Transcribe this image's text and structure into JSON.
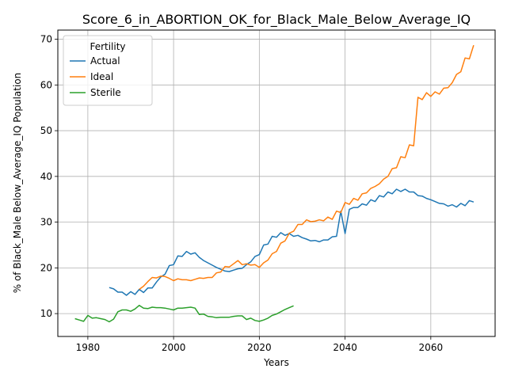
{
  "chart_data": {
    "type": "line",
    "title": "Score_6_in_ABORTION_OK_for_Black_Male_Below_Average_IQ",
    "xlabel": "Years",
    "ylabel": "% of Black_Male Below_Average_IQ Population",
    "xlim": [
      1973,
      2075
    ],
    "ylim": [
      5,
      72
    ],
    "xticks": [
      1980,
      2000,
      2020,
      2040,
      2060
    ],
    "yticks": [
      10,
      20,
      30,
      40,
      50,
      60,
      70
    ],
    "grid": true,
    "legend": {
      "title": "Fertility",
      "placement": "top-left"
    },
    "series": [
      {
        "name": "Actual",
        "color": "#1f77b4",
        "x": [
          1985,
          1986,
          1987,
          1988,
          1989,
          1990,
          1991,
          1992,
          1993,
          1994,
          1995,
          1996,
          1997,
          1998,
          1999,
          2000,
          2001,
          2002,
          2003,
          2004,
          2005,
          2006,
          2007,
          2008,
          2009,
          2010,
          2011,
          2012,
          2013,
          2014,
          2015,
          2016,
          2017,
          2018,
          2019,
          2020,
          2021,
          2022,
          2023,
          2024,
          2025,
          2026,
          2027,
          2028,
          2029,
          2030,
          2031,
          2032,
          2033,
          2034,
          2035,
          2036,
          2037,
          2038,
          2039,
          2040,
          2041,
          2042,
          2043,
          2044,
          2045,
          2046,
          2047,
          2048,
          2049,
          2050,
          2051,
          2052,
          2053,
          2054,
          2055,
          2056,
          2057,
          2058,
          2059,
          2060,
          2061,
          2062,
          2063,
          2064,
          2065,
          2066,
          2067,
          2068,
          2069,
          2070
        ],
        "y": [
          15.7,
          15.4,
          14.7,
          14.7,
          14.0,
          14.8,
          14.2,
          15.3,
          14.6,
          15.6,
          15.6,
          16.9,
          18.0,
          18.6,
          20.5,
          20.7,
          22.6,
          22.5,
          23.6,
          23.0,
          23.3,
          22.3,
          21.6,
          21.1,
          20.6,
          20.1,
          19.7,
          19.3,
          19.2,
          19.5,
          19.8,
          19.9,
          20.7,
          21.3,
          22.5,
          22.9,
          25.0,
          25.2,
          26.9,
          26.7,
          27.7,
          27.1,
          27.5,
          26.9,
          27.1,
          26.6,
          26.3,
          25.9,
          26.0,
          25.7,
          26.1,
          26.1,
          26.8,
          26.9,
          32.4,
          27.5,
          32.8,
          33.2,
          33.2,
          34.0,
          33.7,
          34.9,
          34.5,
          35.8,
          35.5,
          36.6,
          36.2,
          37.2,
          36.7,
          37.2,
          36.6,
          36.6,
          35.8,
          35.7,
          35.2,
          34.9,
          34.5,
          34.1,
          34.0,
          33.5,
          33.8,
          33.3,
          34.1,
          33.6,
          34.7,
          34.4
        ]
      },
      {
        "name": "Ideal",
        "color": "#ff7f0e",
        "x": [
          1992,
          1993,
          1994,
          1995,
          1996,
          1997,
          1998,
          1999,
          2000,
          2001,
          2002,
          2003,
          2004,
          2005,
          2006,
          2007,
          2008,
          2009,
          2010,
          2011,
          2012,
          2013,
          2014,
          2015,
          2016,
          2017,
          2018,
          2019,
          2020,
          2021,
          2022,
          2023,
          2024,
          2025,
          2026,
          2027,
          2028,
          2029,
          2030,
          2031,
          2032,
          2033,
          2034,
          2035,
          2036,
          2037,
          2038,
          2039,
          2040,
          2041,
          2042,
          2043,
          2044,
          2045,
          2046,
          2047,
          2048,
          2049,
          2050,
          2051,
          2052,
          2053,
          2054,
          2055,
          2056,
          2057,
          2058,
          2059,
          2060,
          2061,
          2062,
          2063,
          2064,
          2065,
          2066,
          2067,
          2068,
          2069,
          2070
        ],
        "y": [
          15.3,
          16.0,
          17.0,
          17.9,
          17.8,
          18.2,
          18.1,
          17.7,
          17.2,
          17.6,
          17.4,
          17.4,
          17.2,
          17.5,
          17.8,
          17.7,
          17.9,
          17.9,
          18.9,
          19.1,
          20.3,
          20.2,
          20.9,
          21.6,
          20.7,
          20.9,
          20.6,
          20.7,
          20.1,
          21.1,
          21.7,
          23.1,
          23.6,
          25.4,
          25.9,
          27.6,
          28.0,
          29.5,
          29.5,
          30.5,
          30.1,
          30.2,
          30.5,
          30.3,
          31.1,
          30.6,
          32.4,
          32.1,
          34.3,
          33.9,
          35.2,
          34.8,
          36.2,
          36.4,
          37.4,
          37.8,
          38.4,
          39.4,
          40.0,
          41.7,
          41.9,
          44.3,
          44.1,
          46.9,
          46.7,
          57.3,
          56.8,
          58.3,
          57.5,
          58.5,
          58.0,
          59.3,
          59.4,
          60.5,
          62.3,
          62.9,
          65.9,
          65.7,
          68.7
        ]
      },
      {
        "name": "Sterile",
        "color": "#2ca02c",
        "x": [
          1977,
          1978,
          1979,
          1980,
          1981,
          1982,
          1983,
          1984,
          1985,
          1986,
          1987,
          1988,
          1989,
          1990,
          1991,
          1992,
          1993,
          1994,
          1995,
          1996,
          1997,
          1998,
          1999,
          2000,
          2001,
          2002,
          2003,
          2004,
          2005,
          2006,
          2007,
          2008,
          2009,
          2010,
          2011,
          2012,
          2013,
          2014,
          2015,
          2016,
          2017,
          2018,
          2019,
          2020,
          2021,
          2022,
          2023,
          2024,
          2025,
          2026,
          2027,
          2028
        ],
        "y": [
          8.9,
          8.6,
          8.3,
          9.6,
          9.0,
          9.1,
          8.9,
          8.7,
          8.2,
          8.8,
          10.4,
          10.8,
          10.8,
          10.5,
          11.0,
          11.8,
          11.2,
          11.1,
          11.4,
          11.3,
          11.3,
          11.2,
          11.0,
          10.8,
          11.2,
          11.2,
          11.3,
          11.4,
          11.2,
          9.8,
          9.9,
          9.4,
          9.3,
          9.1,
          9.2,
          9.2,
          9.2,
          9.4,
          9.5,
          9.5,
          8.7,
          9.0,
          8.5,
          8.3,
          8.6,
          9.0,
          9.6,
          9.9,
          10.4,
          10.9,
          11.3,
          11.7
        ]
      }
    ]
  }
}
